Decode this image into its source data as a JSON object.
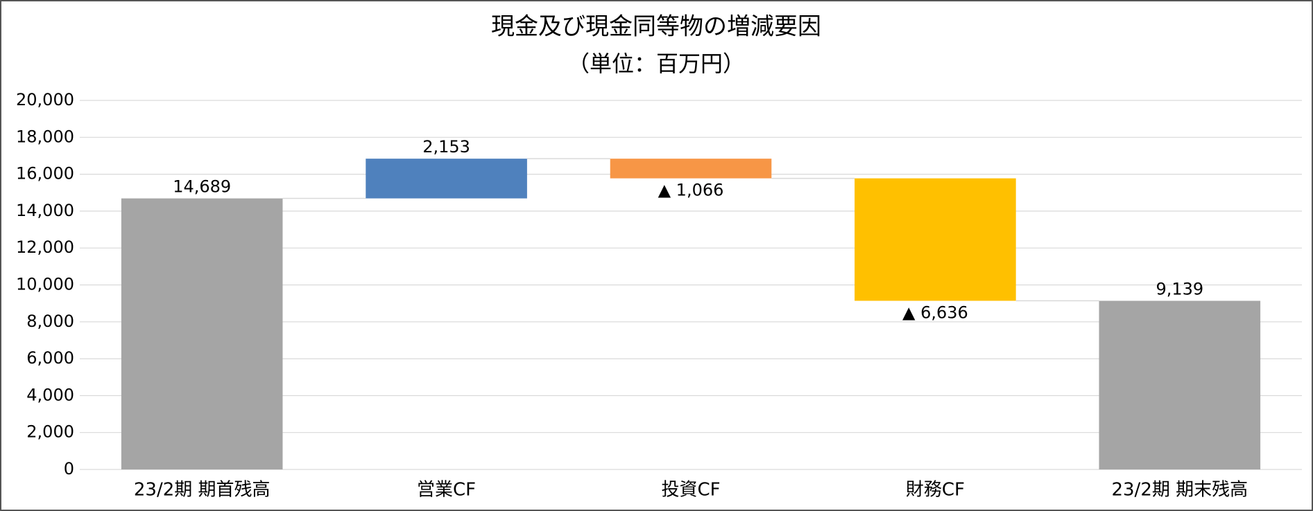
{
  "chart_data": {
    "type": "waterfall",
    "title": "現金及び現金同等物の増減要因",
    "subtitle": "（単位：百万円）",
    "categories": [
      "23/2期 期首残高",
      "営業CF",
      "投資CF",
      "財務CF",
      "23/2期 期末残高"
    ],
    "values": [
      14689,
      2153,
      -1066,
      -6636,
      9139
    ],
    "value_labels": [
      "14,689",
      "2,153",
      "▲ 1,066",
      "▲ 6,636",
      "9,139"
    ],
    "colors": [
      "#a5a5a5",
      "#4f81bd",
      "#f79646",
      "#ffc000",
      "#a5a5a5"
    ],
    "ylim": [
      0,
      20000
    ],
    "yticks": [
      0,
      {
        "value": 2000,
        "label": "2,000"
      },
      {
        "value": 4000,
        "label": "4,000"
      },
      {
        "value": 6000,
        "label": "6,000"
      },
      {
        "value": 8000,
        "label": "8,000"
      },
      {
        "value": 10000,
        "label": "10,000"
      },
      {
        "value": 12000,
        "label": "12,000"
      },
      {
        "value": 14000,
        "label": "14,000"
      },
      {
        "value": 16000,
        "label": "16,000"
      },
      {
        "value": 18000,
        "label": "18,000"
      },
      {
        "value": 20000,
        "label": "20,000"
      }
    ],
    "grid": true
  }
}
